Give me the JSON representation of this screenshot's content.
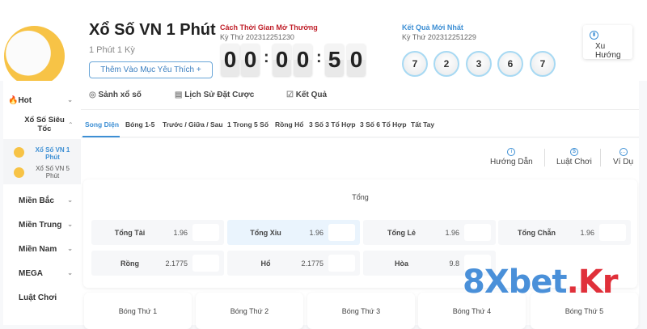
{
  "header": {
    "title": "Xổ Số VN 1 Phút",
    "subtitle": "1 Phút 1 Kỳ",
    "favorite_button": "Thêm Vào Mục Yêu Thích +",
    "countdown": {
      "label": "Cách Thời Gian Mở Thưởng",
      "period": "Kỳ Thứ 202312251230",
      "digits": [
        "0",
        "0",
        "0",
        "0",
        "5",
        "0"
      ],
      "separator": ":"
    },
    "latest": {
      "label": "Kết Quả Mới Nhất",
      "period": "Kỳ Thứ 202312251229",
      "balls": [
        "7",
        "2",
        "3",
        "6",
        "7"
      ]
    },
    "trend_button": "Xu Hướng"
  },
  "sidebar": {
    "hot": "Hot",
    "category": "Xổ Số Siêu Tốc",
    "games": [
      "Xổ Số VN 1 Phút",
      "Xổ Số VN 5 Phút"
    ],
    "regions": [
      "Miền Bắc",
      "Miền Trung",
      "Miền Nam",
      "MEGA",
      "Luật Chơi"
    ]
  },
  "main_tabs": [
    "Sảnh xổ số",
    "Lịch Sử Đặt Cược",
    "Kết Quả"
  ],
  "sub_tabs": [
    "Song Diện",
    "Bóng 1-5",
    "Trước / Giữa / Sau",
    "1 Trong 5 Số",
    "Rồng Hổ",
    "3 Số 3 Tổ Hợp",
    "3 Số 6 Tổ Hợp",
    "Tất Tay"
  ],
  "active_sub_tab": "Song Diện",
  "guides": [
    "Hướng Dẫn",
    "Luật Chơi",
    "Ví Dụ"
  ],
  "panel": {
    "title": "Tổng",
    "bets": [
      {
        "name": "Tổng Tài",
        "odds": "1.96"
      },
      {
        "name": "Tổng Xỉu",
        "odds": "1.96"
      },
      {
        "name": "Tổng Lẻ",
        "odds": "1.96"
      },
      {
        "name": "Tổng Chẵn",
        "odds": "1.96"
      },
      {
        "name": "Rồng",
        "odds": "2.1775"
      },
      {
        "name": "Hổ",
        "odds": "2.1775"
      },
      {
        "name": "Hòa",
        "odds": "9.8"
      }
    ]
  },
  "balls_sections": [
    "Bóng Thứ 1",
    "Bóng Thứ 2",
    "Bóng Thứ 3",
    "Bóng Thứ 4",
    "Bóng Thứ 5"
  ],
  "watermark": {
    "text_a": "8Xbet",
    "text_b": ".Kr"
  },
  "colors": {
    "accent": "#3d8fd4",
    "countdown_label": "#c0202a",
    "selected_cell": "#eaf4fd"
  }
}
